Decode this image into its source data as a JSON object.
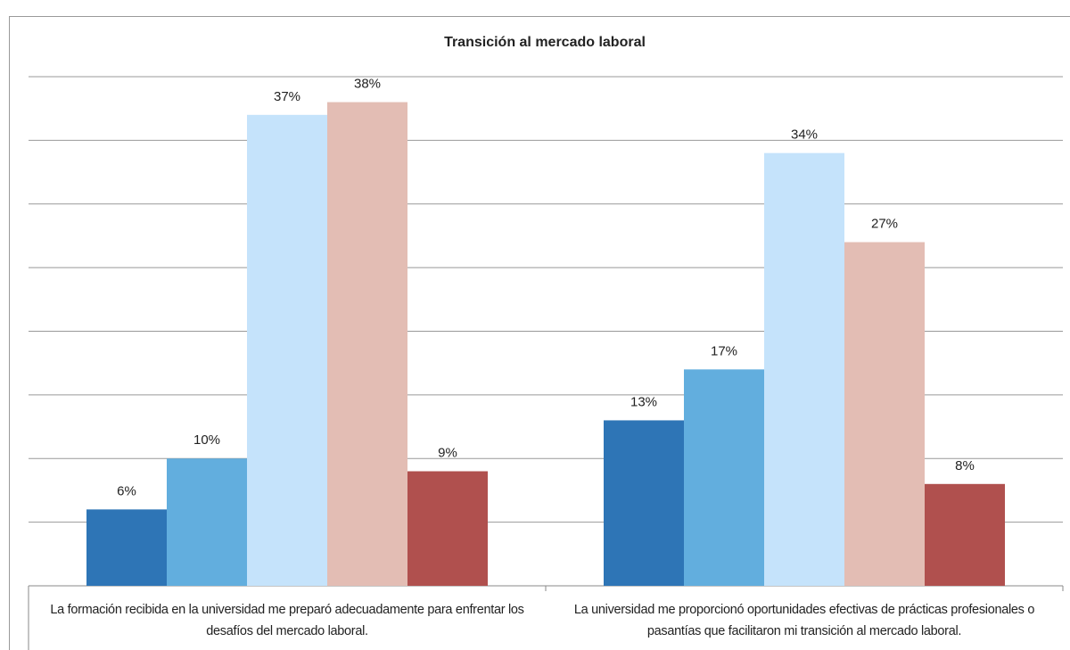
{
  "chart_data": {
    "type": "bar",
    "title": "Transición al mercado laboral",
    "categories": [
      "La formación recibida en la universidad me preparó adecuadamente para enfrentar los desafíos del mercado laboral.",
      "La universidad me proporcionó oportunidades efectivas de prácticas profesionales o pasantías que facilitaron mi transición al mercado laboral."
    ],
    "series": [
      {
        "color": "#2e75b6",
        "values": [
          6,
          13
        ],
        "value_labels": [
          "6%",
          "13%"
        ]
      },
      {
        "color": "#62aede",
        "values": [
          10,
          17
        ],
        "value_labels": [
          "10%",
          "17%"
        ]
      },
      {
        "color": "#c5e3fb",
        "values": [
          37,
          34
        ],
        "value_labels": [
          "37%",
          "34%"
        ]
      },
      {
        "color": "#e3bdb4",
        "values": [
          38,
          27
        ],
        "value_labels": [
          "38%",
          "27%"
        ]
      },
      {
        "color": "#b0504e",
        "values": [
          9,
          8
        ],
        "value_labels": [
          "9%",
          "8%"
        ]
      }
    ],
    "ylim": [
      0,
      40
    ],
    "yticks": [
      0,
      5,
      10,
      15,
      20,
      25,
      30,
      35,
      40
    ],
    "grid": true
  }
}
